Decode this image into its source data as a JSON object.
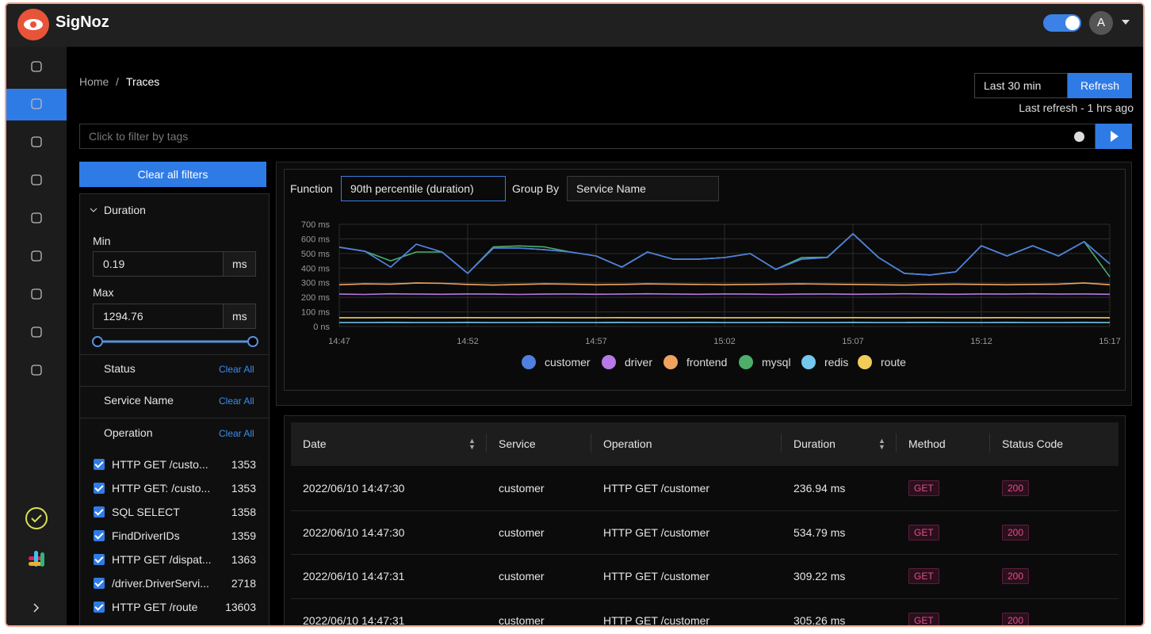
{
  "header": {
    "brand": "SigNoz",
    "avatar": "A"
  },
  "breadcrumb": {
    "home": "Home",
    "separator": "/",
    "current": "Traces"
  },
  "toolbar": {
    "time_range": "Last 30 min",
    "refresh": "Refresh",
    "last_refresh": "Last refresh - 1 hrs ago",
    "search_placeholder": "Click to filter by tags"
  },
  "filters": {
    "clear_all": "Clear all filters",
    "duration": {
      "title": "Duration",
      "min_label": "Min",
      "min_value": "0.19",
      "unit": "ms",
      "max_label": "Max",
      "max_value": "1294.76"
    },
    "sections": [
      {
        "title": "Status",
        "clear": "Clear All"
      },
      {
        "title": "Service Name",
        "clear": "Clear All"
      },
      {
        "title": "Operation",
        "clear": "Clear All"
      }
    ],
    "operations": [
      {
        "name": "HTTP GET /custo...",
        "count": 1353
      },
      {
        "name": "HTTP GET: /custo...",
        "count": 1353
      },
      {
        "name": "SQL SELECT",
        "count": 1358
      },
      {
        "name": "FindDriverIDs",
        "count": 1359
      },
      {
        "name": "HTTP GET /dispat...",
        "count": 1363
      },
      {
        "name": "/driver.DriverServi...",
        "count": 2718
      },
      {
        "name": "HTTP GET /route",
        "count": 13603
      }
    ]
  },
  "chart_controls": {
    "function_label": "Function",
    "function_value": "90th percentile (duration)",
    "group_by_label": "Group By",
    "group_by_value": "Service Name"
  },
  "chart_data": {
    "type": "line",
    "categories": [
      "14:47",
      null,
      null,
      null,
      null,
      "14:52",
      null,
      null,
      null,
      null,
      "14:57",
      null,
      null,
      null,
      null,
      "15:02",
      null,
      null,
      null,
      null,
      "15:07",
      null,
      null,
      null,
      null,
      "15:12",
      null,
      null,
      null,
      null,
      "15:17"
    ],
    "ylim": [
      0,
      700
    ],
    "yticks": [
      {
        "value": 0,
        "label": "0 ns"
      },
      {
        "value": 100,
        "label": "100 ms"
      },
      {
        "value": 200,
        "label": "200 ms"
      },
      {
        "value": 300,
        "label": "300 ms"
      },
      {
        "value": 400,
        "label": "400 ms"
      },
      {
        "value": 500,
        "label": "500 ms"
      },
      {
        "value": 600,
        "label": "600 ms"
      },
      {
        "value": 700,
        "label": "700 ms"
      }
    ],
    "grid": true,
    "series": [
      {
        "name": "customer",
        "color": "#4f7fdf",
        "values": [
          543,
          515,
          407,
          564,
          510,
          364,
          537,
          537,
          526,
          510,
          483,
          407,
          510,
          461,
          461,
          472,
          499,
          391,
          461,
          472,
          635,
          472,
          364,
          353,
          374,
          553,
          483,
          553,
          483,
          581,
          429
        ]
      },
      {
        "name": "driver",
        "color": "#b779e6",
        "values": [
          222,
          220,
          224,
          222,
          221,
          223,
          222,
          220,
          222,
          223,
          221,
          222,
          224,
          222,
          221,
          223,
          222,
          220,
          222,
          223,
          221,
          222,
          224,
          222,
          221,
          223,
          222,
          224,
          222,
          223,
          221
        ]
      },
      {
        "name": "frontend",
        "color": "#f0a35e",
        "values": [
          286,
          292,
          290,
          298,
          296,
          288,
          284,
          288,
          292,
          290,
          286,
          288,
          292,
          290,
          288,
          286,
          288,
          290,
          292,
          290,
          288,
          286,
          284,
          288,
          290,
          288,
          286,
          288,
          290,
          298,
          286
        ]
      },
      {
        "name": "mysql",
        "color": "#4caf6a",
        "values": [
          543,
          515,
          450,
          510,
          510,
          364,
          545,
          552,
          545,
          510,
          483,
          407,
          510,
          461,
          461,
          472,
          499,
          391,
          472,
          475,
          635,
          472,
          364,
          353,
          374,
          553,
          483,
          553,
          483,
          581,
          340
        ]
      },
      {
        "name": "redis",
        "color": "#74c8ef",
        "values": [
          27,
          27,
          28,
          27,
          27,
          28,
          27,
          27,
          28,
          27,
          27,
          28,
          27,
          27,
          28,
          27,
          27,
          28,
          27,
          27,
          28,
          27,
          27,
          28,
          27,
          27,
          28,
          27,
          27,
          28,
          27
        ]
      },
      {
        "name": "route",
        "color": "#f2cc58",
        "values": [
          60,
          60,
          61,
          60,
          60,
          61,
          60,
          60,
          61,
          60,
          60,
          61,
          60,
          60,
          61,
          60,
          60,
          61,
          60,
          60,
          61,
          60,
          60,
          61,
          60,
          60,
          61,
          60,
          60,
          61,
          60
        ]
      }
    ]
  },
  "table": {
    "columns": [
      "Date",
      "Service",
      "Operation",
      "Duration",
      "Method",
      "Status Code"
    ],
    "rows": [
      [
        "2022/06/10 14:47:30",
        "customer",
        "HTTP GET /customer",
        "236.94 ms",
        "GET",
        "200"
      ],
      [
        "2022/06/10 14:47:30",
        "customer",
        "HTTP GET /customer",
        "534.79 ms",
        "GET",
        "200"
      ],
      [
        "2022/06/10 14:47:31",
        "customer",
        "HTTP GET /customer",
        "309.22 ms",
        "GET",
        "200"
      ],
      [
        "2022/06/10 14:47:31",
        "customer",
        "HTTP GET /customer",
        "305.26 ms",
        "GET",
        "200"
      ]
    ]
  }
}
